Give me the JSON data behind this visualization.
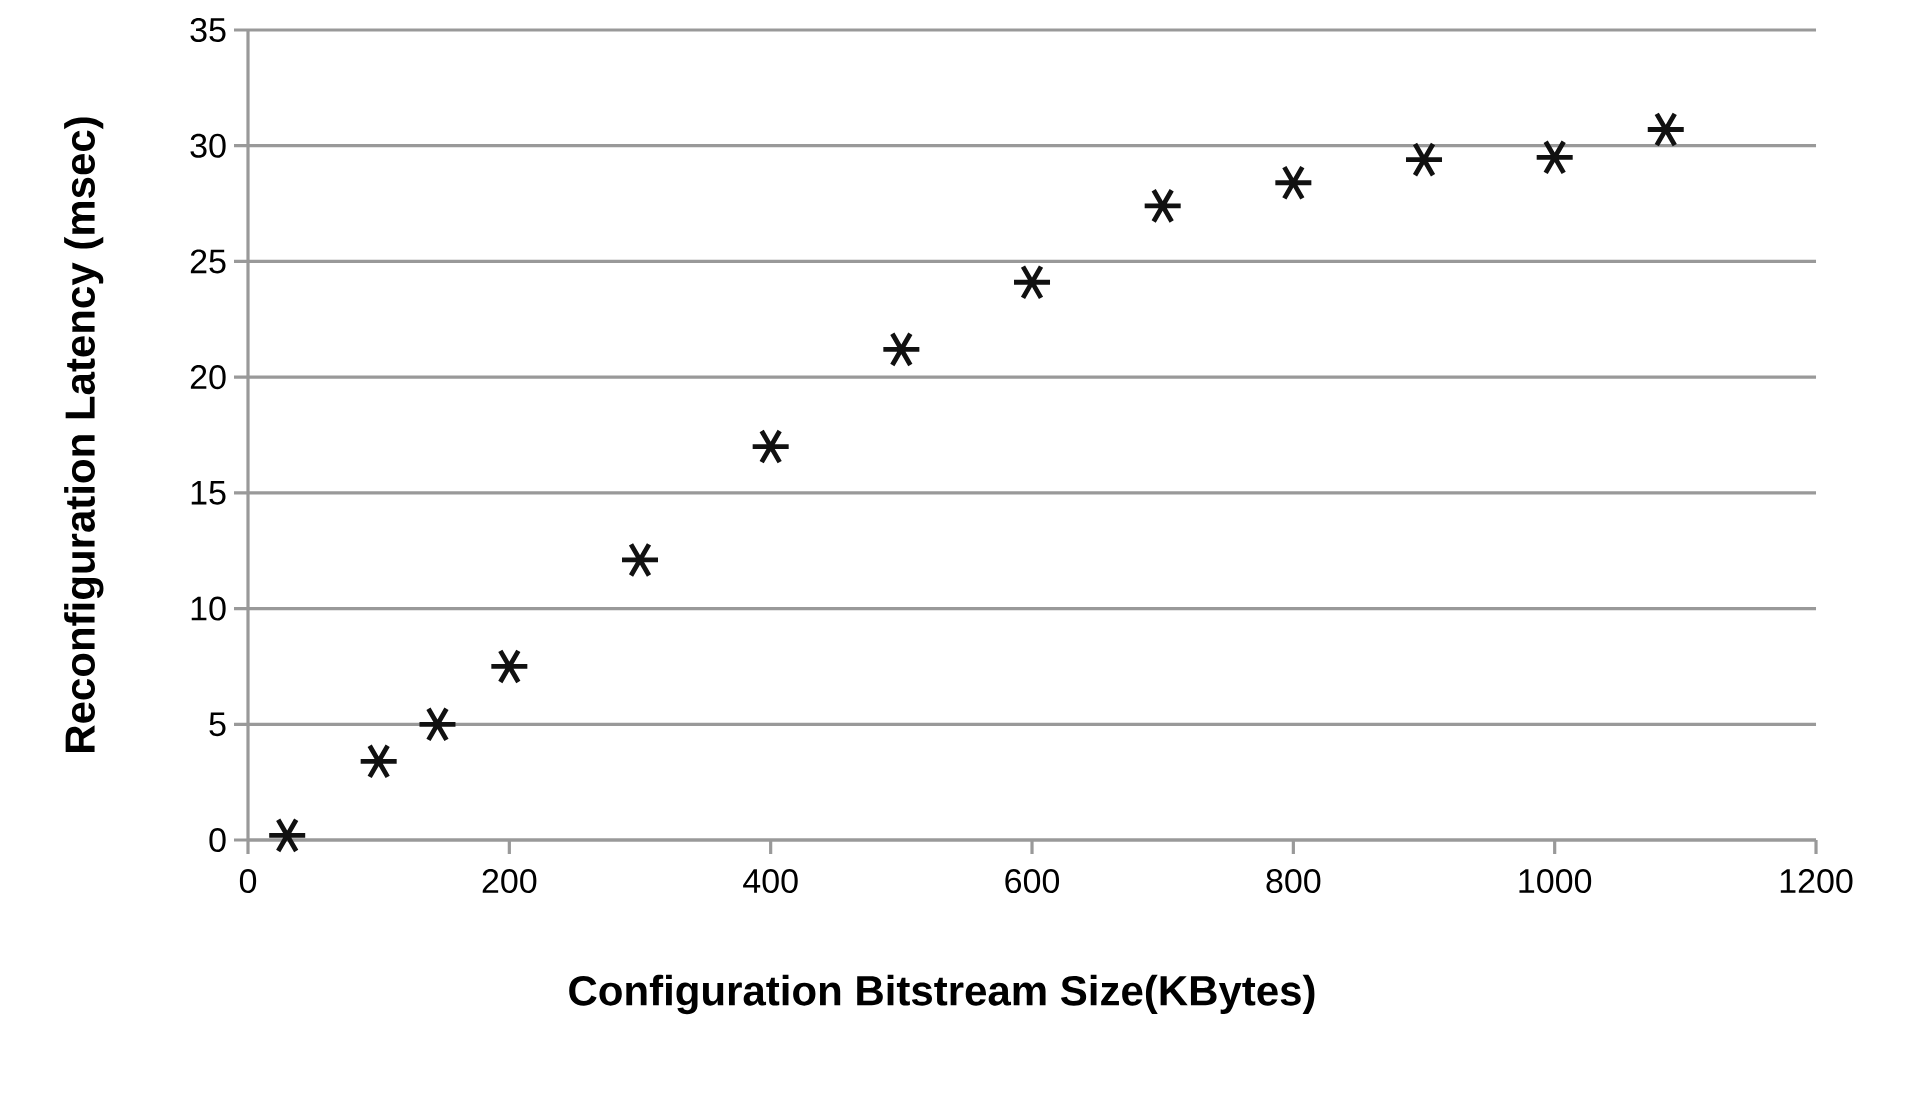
{
  "chart_data": {
    "type": "scatter",
    "xlabel": "Configuration Bitstream Size(KBytes)",
    "ylabel": "Reconfiguration Latency (msec)",
    "x": [
      30,
      100,
      145,
      200,
      300,
      400,
      500,
      600,
      700,
      800,
      900,
      1000,
      1085
    ],
    "series": [
      {
        "color": "#111111",
        "values": [
          0.2,
          3.4,
          5.0,
          7.5,
          12.1,
          17.0,
          21.2,
          24.1,
          27.4,
          28.4,
          29.4,
          29.5,
          30.7
        ]
      }
    ],
    "xlim": [
      0,
      1200
    ],
    "xticks": [
      0,
      200,
      400,
      600,
      800,
      1000,
      1200
    ],
    "ylim": [
      0,
      35
    ],
    "yticks": [
      0,
      5,
      10,
      15,
      20,
      25,
      30,
      35
    ],
    "grid": "y",
    "marker": "cross"
  }
}
